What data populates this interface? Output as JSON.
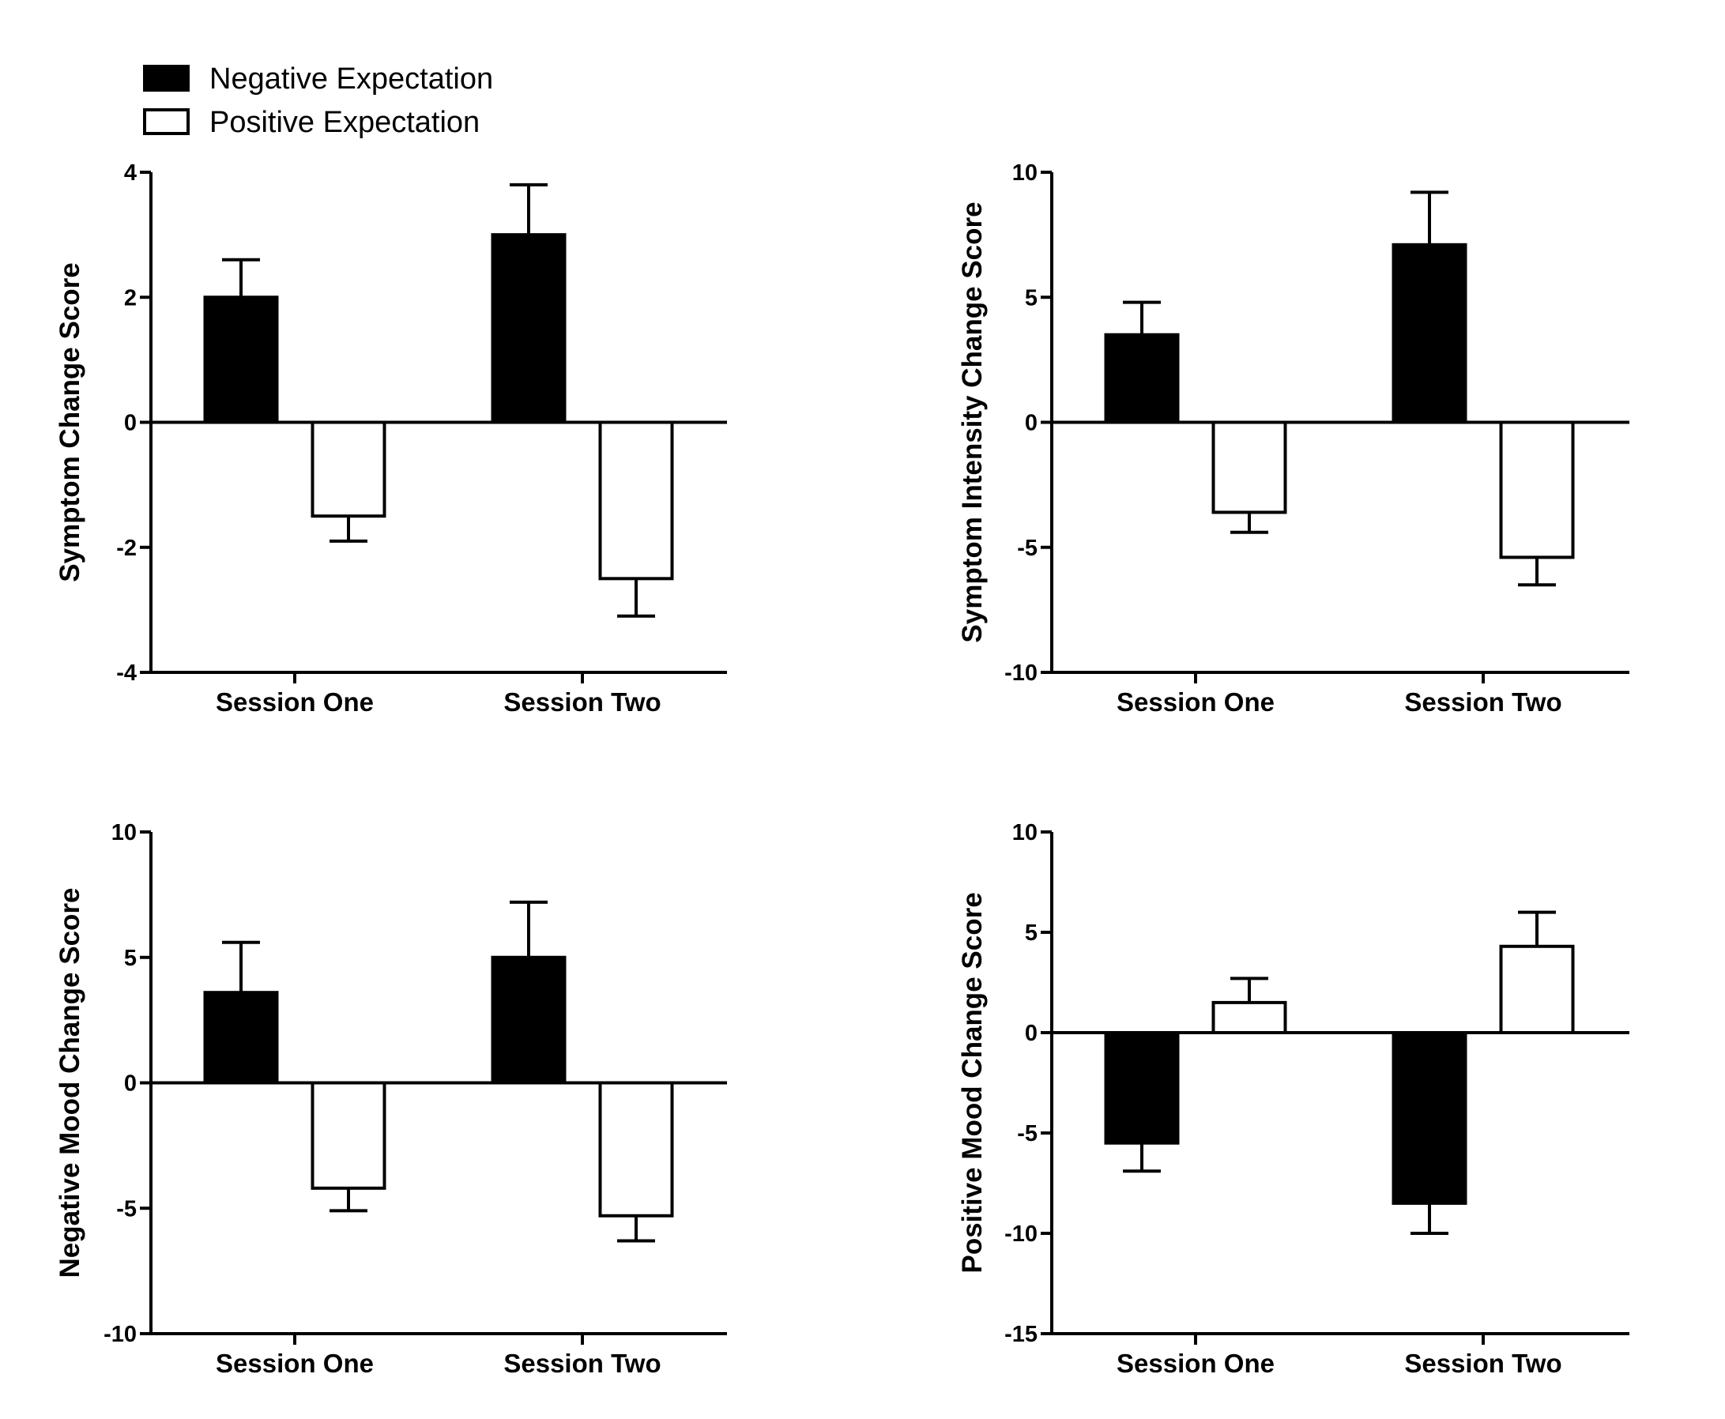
{
  "legend": {
    "entries": [
      {
        "name": "Negative Expectation",
        "color": "#000000"
      },
      {
        "name": "Positive Expectation",
        "color": "#ffffff"
      }
    ]
  },
  "chart_data": [
    {
      "type": "bar",
      "categories": [
        "Session One",
        "Session Two"
      ],
      "series": [
        {
          "name": "Negative Expectation",
          "values": [
            2.0,
            3.0
          ],
          "errors": [
            0.6,
            0.8
          ]
        },
        {
          "name": "Positive Expectation",
          "values": [
            -1.5,
            -2.5
          ],
          "errors": [
            0.4,
            0.6
          ]
        }
      ],
      "ylabel": "Symptom Change Score",
      "ylim": [
        -4,
        4
      ],
      "yticks": [
        4,
        2,
        0,
        -2,
        -4
      ],
      "ytick_labels": [
        "4",
        "2",
        "0",
        "-2",
        "-4"
      ],
      "grid": false,
      "legend": "top-left"
    },
    {
      "type": "bar",
      "categories": [
        "Session One",
        "Session Two"
      ],
      "series": [
        {
          "name": "Negative Expectation",
          "values": [
            3.5,
            7.1
          ],
          "errors": [
            1.3,
            2.1
          ]
        },
        {
          "name": "Positive Expectation",
          "values": [
            -3.6,
            -5.4
          ],
          "errors": [
            0.8,
            1.1
          ]
        }
      ],
      "ylabel": "Symptom Intensity Change Score",
      "ylim": [
        -10,
        10
      ],
      "yticks": [
        10,
        5,
        0,
        -5,
        -10
      ],
      "ytick_labels": [
        "10",
        "5",
        "0",
        "-5",
        "-10"
      ],
      "grid": false
    },
    {
      "type": "bar",
      "categories": [
        "Session One",
        "Session Two"
      ],
      "series": [
        {
          "name": "Negative Expectation",
          "values": [
            3.6,
            5.0
          ],
          "errors": [
            2.0,
            2.2
          ]
        },
        {
          "name": "Positive Expectation",
          "values": [
            -4.2,
            -5.3
          ],
          "errors": [
            0.9,
            1.0
          ]
        }
      ],
      "ylabel": "Negative Mood Change Score",
      "ylim": [
        -10,
        10
      ],
      "yticks": [
        10,
        5,
        0,
        -5,
        -10
      ],
      "ytick_labels": [
        "10",
        "5",
        "0",
        "-5",
        "-10"
      ],
      "grid": false
    },
    {
      "type": "bar",
      "categories": [
        "Session One",
        "Session Two"
      ],
      "series": [
        {
          "name": "Negative Expectation",
          "values": [
            -5.5,
            -8.5
          ],
          "errors": [
            1.4,
            1.5
          ]
        },
        {
          "name": "Positive Expectation",
          "values": [
            1.5,
            4.3
          ],
          "errors": [
            1.2,
            1.7
          ]
        }
      ],
      "ylabel": "Positive Mood Change Score",
      "ylim": [
        -15,
        10
      ],
      "yticks": [
        10,
        5,
        0,
        -5,
        -10,
        -15
      ],
      "ytick_labels": [
        "10",
        "5",
        "0",
        "-5",
        "-10",
        "-15"
      ],
      "grid": false
    }
  ]
}
